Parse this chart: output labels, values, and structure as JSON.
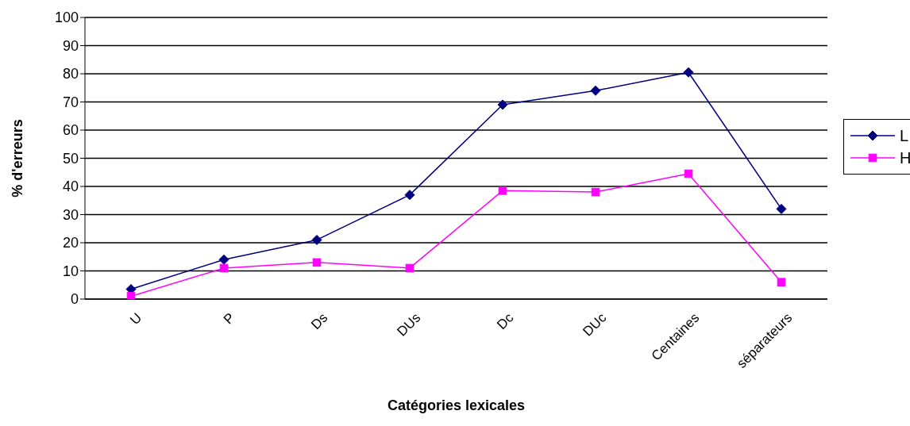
{
  "chart_data": {
    "type": "line",
    "xlabel": "Catégories lexicales",
    "ylabel": "% d'erreurs",
    "categories": [
      "U",
      "P",
      "Ds",
      "DUs",
      "Dc",
      "DUc",
      "Centaines",
      "séparateurs"
    ],
    "series": [
      {
        "name": "L",
        "color": "#000080",
        "marker": "diamond",
        "values": [
          3.5,
          14,
          21,
          37,
          69,
          74,
          80.5,
          32
        ]
      },
      {
        "name": "H",
        "color": "#ff00ff",
        "marker": "square",
        "values": [
          1,
          11,
          13,
          11,
          38.5,
          38,
          44.5,
          6
        ]
      }
    ],
    "ylim": [
      0,
      100
    ],
    "yticks": [
      0,
      10,
      20,
      30,
      40,
      50,
      60,
      70,
      80,
      90,
      100
    ],
    "grid": "y",
    "legend": "right"
  }
}
